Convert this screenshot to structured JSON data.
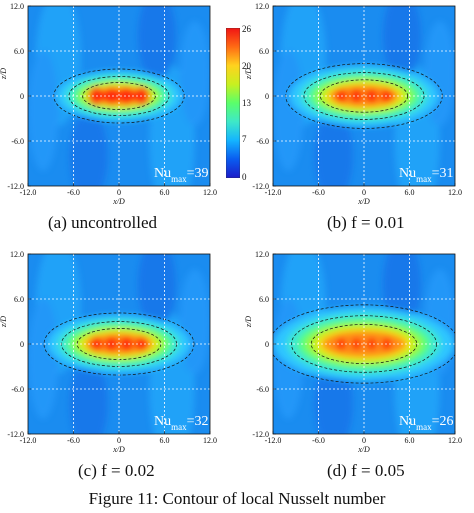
{
  "figure": {
    "caption": "Figure 11: Contour of local Nusselt number"
  },
  "colorbar": {
    "ticks": [
      "26",
      "20",
      "13",
      "7",
      "0"
    ],
    "tick_values": [
      26,
      20,
      13,
      7,
      0
    ],
    "colors": [
      "#1c1cc8",
      "#0a5cf0",
      "#14b4ff",
      "#3ee8c8",
      "#5aff6a",
      "#c8f020",
      "#ffd21e",
      "#ff6a14",
      "#f01414"
    ]
  },
  "axes": {
    "xlabel": "x/D",
    "ylabel": "z/D",
    "xticks": [
      "-6.0",
      "0",
      "6.0",
      "12.0"
    ],
    "xtick_values": [
      -6,
      0,
      6,
      12
    ],
    "xmin_label": "-12.0",
    "yticks": [
      "12.0",
      "6.0",
      "0",
      "-6.0",
      "-12.0"
    ],
    "ytick_values": [
      12,
      6,
      0,
      -6,
      -12
    ],
    "range": [
      -12,
      12
    ]
  },
  "panels": [
    {
      "id": "a",
      "caption": "(a) uncontrolled",
      "nu_text": "Nu",
      "nu_sub": "max",
      "nu_value": "=39",
      "spread": 1.0,
      "blob": 0.85
    },
    {
      "id": "b",
      "caption": "(b) f = 0.01",
      "nu_text": "Nu",
      "nu_sub": "max",
      "nu_value": "=31",
      "spread": 1.2,
      "blob": 0.65
    },
    {
      "id": "c",
      "caption": "(c) f = 0.02",
      "nu_text": "Nu",
      "nu_sub": "max",
      "nu_value": "=32",
      "spread": 1.15,
      "blob": 0.7
    },
    {
      "id": "d",
      "caption": "(d) f = 0.05",
      "nu_text": "Nu",
      "nu_sub": "max",
      "nu_value": "=26",
      "spread": 1.45,
      "blob": 0.55
    }
  ],
  "chart_data": [
    {
      "type": "heatmap",
      "title": "(a) uncontrolled",
      "xlabel": "x/D",
      "ylabel": "z/D",
      "xlim": [
        -12,
        12
      ],
      "ylim": [
        -12,
        12
      ],
      "zlim": [
        0,
        26
      ],
      "max_value": 39
    },
    {
      "type": "heatmap",
      "title": "(b) f = 0.01",
      "xlabel": "x/D",
      "ylabel": "z/D",
      "xlim": [
        -12,
        12
      ],
      "ylim": [
        -12,
        12
      ],
      "zlim": [
        0,
        26
      ],
      "max_value": 31
    },
    {
      "type": "heatmap",
      "title": "(c) f = 0.02",
      "xlabel": "x/D",
      "ylabel": "z/D",
      "xlim": [
        -12,
        12
      ],
      "ylim": [
        -12,
        12
      ],
      "zlim": [
        0,
        26
      ],
      "max_value": 32
    },
    {
      "type": "heatmap",
      "title": "(d) f = 0.05",
      "xlabel": "x/D",
      "ylabel": "z/D",
      "xlim": [
        -12,
        12
      ],
      "ylim": [
        -12,
        12
      ],
      "zlim": [
        0,
        26
      ],
      "max_value": 26
    }
  ]
}
